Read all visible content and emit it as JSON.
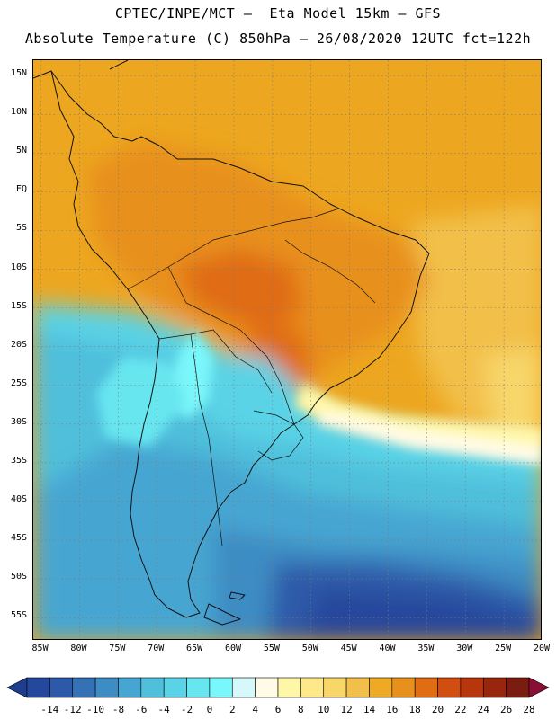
{
  "header": {
    "line1": "CPTEC/INPE/MCT –  Eta Model 15km – GFS",
    "line2": "Absolute Temperature (C) 850hPa – 26/08/2020 12UTC fct=122h"
  },
  "map": {
    "variable": "Absolute Temperature",
    "units": "C",
    "level": "850hPa",
    "lat_range": [
      -58,
      17
    ],
    "lon_range": [
      -86,
      -20
    ],
    "lat_labels": [
      {
        "lat": 15,
        "text": "15N"
      },
      {
        "lat": 10,
        "text": "10N"
      },
      {
        "lat": 5,
        "text": "5N"
      },
      {
        "lat": 0,
        "text": "EQ"
      },
      {
        "lat": -5,
        "text": "5S"
      },
      {
        "lat": -10,
        "text": "10S"
      },
      {
        "lat": -15,
        "text": "15S"
      },
      {
        "lat": -20,
        "text": "20S"
      },
      {
        "lat": -25,
        "text": "25S"
      },
      {
        "lat": -30,
        "text": "30S"
      },
      {
        "lat": -35,
        "text": "35S"
      },
      {
        "lat": -40,
        "text": "40S"
      },
      {
        "lat": -45,
        "text": "45S"
      },
      {
        "lat": -50,
        "text": "50S"
      },
      {
        "lat": -55,
        "text": "55S"
      }
    ],
    "lon_labels": [
      {
        "lon": -85,
        "text": "85W"
      },
      {
        "lon": -80,
        "text": "80W"
      },
      {
        "lon": -75,
        "text": "75W"
      },
      {
        "lon": -70,
        "text": "70W"
      },
      {
        "lon": -65,
        "text": "65W"
      },
      {
        "lon": -60,
        "text": "60W"
      },
      {
        "lon": -55,
        "text": "55W"
      },
      {
        "lon": -50,
        "text": "50W"
      },
      {
        "lon": -45,
        "text": "45W"
      },
      {
        "lon": -40,
        "text": "40W"
      },
      {
        "lon": -35,
        "text": "35W"
      },
      {
        "lon": -30,
        "text": "30W"
      },
      {
        "lon": -25,
        "text": "25W"
      },
      {
        "lon": -20,
        "text": "20W"
      }
    ]
  },
  "colorbar": {
    "labels": [
      "-14",
      "-12",
      "-10",
      "-8",
      "-6",
      "-4",
      "-2",
      "0",
      "2",
      "4",
      "6",
      "8",
      "10",
      "12",
      "14",
      "16",
      "18",
      "20",
      "22",
      "24",
      "26",
      "28"
    ],
    "colors": [
      "#1f3d8f",
      "#25479c",
      "#2d5aa8",
      "#3572b5",
      "#3d8cc4",
      "#46a6d1",
      "#4fbfdc",
      "#5ad3e6",
      "#68e6f0",
      "#7af7fa",
      "#d6f8fb",
      "#fffbe6",
      "#fff7a8",
      "#fde98a",
      "#f8d66a",
      "#f2c04a",
      "#edaa22",
      "#e8901c",
      "#e06c14",
      "#d24e10",
      "#b8360e",
      "#97260c",
      "#7a1d10",
      "#8a0f34"
    ]
  }
}
